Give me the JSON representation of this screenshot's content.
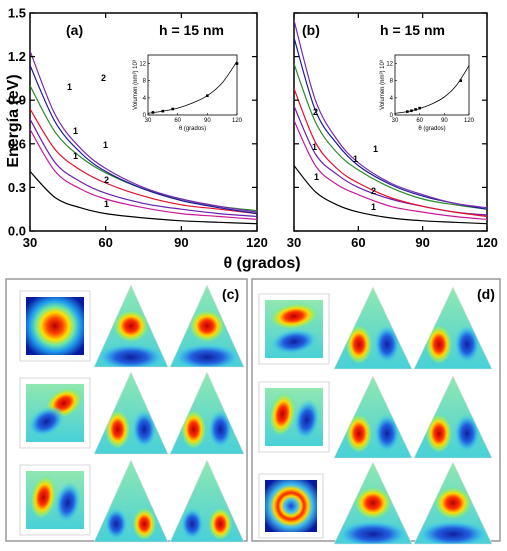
{
  "figure": {
    "ylabel": "Energía (eV)",
    "xlabel": "θ (grados)",
    "panel_labels": [
      "(a)",
      "(b)",
      "(c)",
      "(d)"
    ],
    "h_label": "h = 15 nm"
  },
  "chart_data": [
    {
      "type": "line",
      "panel": "(a)",
      "annotation": "h = 15 nm",
      "xlim": [
        30,
        120
      ],
      "ylim": [
        0,
        1.5
      ],
      "xticks": [
        30,
        60,
        90,
        120
      ],
      "yticks": [
        0.0,
        0.3,
        0.6,
        0.9,
        1.2,
        1.5
      ],
      "ytick_labels": [
        "0.0",
        "0.3",
        "0.6",
        "0.9",
        "1.2",
        "1.5"
      ],
      "xlabel": "θ (grados)",
      "ylabel": "Energía (eV)",
      "series": [
        {
          "label": "1",
          "color": "#000000",
          "x": [
            30,
            40,
            50,
            60,
            75,
            90,
            105,
            120
          ],
          "y": [
            0.41,
            0.23,
            0.16,
            0.12,
            0.09,
            0.07,
            0.06,
            0.05
          ]
        },
        {
          "label": "1",
          "color": "#c8189a",
          "x": [
            30,
            40,
            50,
            60,
            75,
            90,
            105,
            120
          ],
          "y": [
            0.7,
            0.41,
            0.29,
            0.22,
            0.16,
            0.12,
            0.1,
            0.08
          ]
        },
        {
          "label": "2",
          "color": "#6a1fb0",
          "x": [
            30,
            40,
            50,
            60,
            75,
            90,
            105,
            120
          ],
          "y": [
            0.77,
            0.47,
            0.34,
            0.26,
            0.19,
            0.15,
            0.12,
            0.1
          ]
        },
        {
          "label": "1",
          "color": "#e0102c",
          "x": [
            30,
            40,
            50,
            60,
            75,
            90,
            105,
            120
          ],
          "y": [
            0.84,
            0.56,
            0.42,
            0.33,
            0.24,
            0.18,
            0.15,
            0.12
          ]
        },
        {
          "label": "1",
          "color": "#2a8a2a",
          "x": [
            30,
            40,
            50,
            60,
            75,
            90,
            105,
            120
          ],
          "y": [
            1.0,
            0.68,
            0.51,
            0.4,
            0.29,
            0.22,
            0.17,
            0.14
          ]
        },
        {
          "label": "1",
          "color": "#1a1a9a",
          "x": [
            30,
            40,
            50,
            60,
            75,
            90,
            105,
            120
          ],
          "y": [
            1.14,
            0.75,
            0.54,
            0.41,
            0.29,
            0.21,
            0.16,
            0.12
          ]
        },
        {
          "label": "2",
          "color": "#7a2ab0",
          "x": [
            30,
            40,
            50,
            60,
            75,
            90,
            105,
            120
          ],
          "y": [
            1.24,
            0.8,
            0.57,
            0.43,
            0.3,
            0.22,
            0.17,
            0.13
          ]
        }
      ],
      "inset": {
        "xlabel": "θ (grados)",
        "ylabel": "Volumen (nm³) 10³",
        "xticks": [
          30,
          60,
          90,
          120
        ],
        "yticks": [
          0,
          4,
          8,
          12
        ],
        "xlim": [
          30,
          120
        ],
        "ylim": [
          0,
          14
        ],
        "points": {
          "x": [
            35,
            45,
            55,
            90,
            120
          ],
          "y": [
            0.6,
            0.9,
            1.4,
            4.5,
            12.0
          ]
        },
        "curve": {
          "x": [
            30,
            45,
            60,
            75,
            90,
            105,
            120
          ],
          "y": [
            0.4,
            0.9,
            1.6,
            2.8,
            4.5,
            7.5,
            12.5
          ]
        }
      }
    },
    {
      "type": "line",
      "panel": "(b)",
      "annotation": "h = 15 nm",
      "xlim": [
        30,
        120
      ],
      "ylim": [
        0,
        1.5
      ],
      "xticks": [
        30,
        60,
        90,
        120
      ],
      "series": [
        {
          "label": "1",
          "color": "#000000",
          "x": [
            30,
            40,
            50,
            60,
            75,
            90,
            105,
            120
          ],
          "y": [
            0.45,
            0.27,
            0.18,
            0.13,
            0.09,
            0.07,
            0.06,
            0.05
          ]
        },
        {
          "label": "1",
          "color": "#c8189a",
          "x": [
            30,
            40,
            50,
            60,
            75,
            90,
            105,
            120
          ],
          "y": [
            0.76,
            0.45,
            0.32,
            0.25,
            0.17,
            0.13,
            0.1,
            0.08
          ]
        },
        {
          "label": "2",
          "color": "#6a1fb0",
          "x": [
            30,
            40,
            50,
            60,
            75,
            90,
            105,
            120
          ],
          "y": [
            0.86,
            0.53,
            0.39,
            0.3,
            0.22,
            0.17,
            0.13,
            0.11
          ]
        },
        {
          "label": "1",
          "color": "#e0102c",
          "x": [
            30,
            40,
            50,
            60,
            75,
            90,
            105,
            120
          ],
          "y": [
            0.98,
            0.61,
            0.43,
            0.33,
            0.23,
            0.17,
            0.13,
            0.1
          ]
        },
        {
          "label": "1",
          "color": "#2a8a2a",
          "x": [
            30,
            40,
            50,
            60,
            75,
            90,
            105,
            120
          ],
          "y": [
            1.15,
            0.75,
            0.54,
            0.42,
            0.3,
            0.22,
            0.18,
            0.15
          ]
        },
        {
          "label": "1",
          "color": "#1a1a9a",
          "x": [
            30,
            40,
            50,
            60,
            75,
            90,
            105,
            120
          ],
          "y": [
            1.33,
            0.83,
            0.6,
            0.45,
            0.32,
            0.24,
            0.19,
            0.15
          ]
        },
        {
          "label": "2",
          "color": "#7a2ab0",
          "x": [
            30,
            40,
            50,
            60,
            75,
            90,
            105,
            120
          ],
          "y": [
            1.45,
            0.9,
            0.63,
            0.47,
            0.33,
            0.25,
            0.19,
            0.16
          ]
        }
      ],
      "inset": {
        "xlabel": "θ (grados)",
        "ylabel": "Volumen (nm³) 10³",
        "xticks": [
          30,
          60,
          90,
          120
        ],
        "yticks": [
          0,
          4,
          8,
          12
        ],
        "xlim": [
          30,
          120
        ],
        "ylim": [
          0,
          14
        ],
        "points": {
          "x": [
            45,
            50,
            55,
            60,
            110
          ],
          "y": [
            0.8,
            1.0,
            1.3,
            1.6,
            8.0
          ]
        },
        "curve": {
          "x": [
            30,
            45,
            60,
            75,
            90,
            105,
            120
          ],
          "y": [
            0.4,
            0.8,
            1.5,
            2.6,
            4.2,
            7.0,
            11.5
          ]
        }
      }
    }
  ],
  "field_panels": [
    {
      "label": "(c)",
      "rows": [
        {
          "square": "gaussian",
          "triangles": [
            "top-lobe",
            "top-lobe"
          ]
        },
        {
          "square": "diagonal-dipole",
          "triangles": [
            "horizontal-dipole",
            "horizontal-dipole"
          ]
        },
        {
          "square": "vertical-dipole",
          "triangles": [
            "bottom-dipole",
            "bottom-dipole"
          ]
        }
      ]
    },
    {
      "label": "(d)",
      "rows": [
        {
          "square": "horizontal-split",
          "triangles": [
            "horizontal-dipole",
            "horizontal-dipole"
          ]
        },
        {
          "square": "vertical-dipole",
          "triangles": [
            "horizontal-dipole",
            "horizontal-dipole"
          ]
        },
        {
          "square": "ring",
          "triangles": [
            "top-lobe",
            "top-lobe"
          ]
        }
      ]
    }
  ],
  "colors": {
    "hot": "#dd0000",
    "warm": "#ffd800",
    "mid": "#66dd88",
    "cold": "#1030c0",
    "frame": "#888888"
  }
}
